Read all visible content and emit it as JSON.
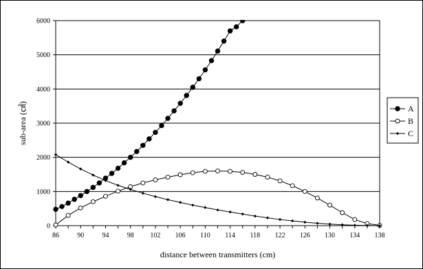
{
  "chart_data": {
    "type": "line",
    "title": "",
    "xlabel": "distance between transmitters (cm)",
    "ylabel": "sub-area (㎠)",
    "xlim": [
      86,
      138
    ],
    "ylim": [
      0,
      6000
    ],
    "x_ticks": [
      86,
      90,
      94,
      98,
      102,
      106,
      110,
      114,
      118,
      122,
      126,
      130,
      134,
      138
    ],
    "y_ticks": [
      0,
      1000,
      2000,
      3000,
      4000,
      5000,
      6000
    ],
    "grid": "horizontal",
    "legend_position": "right",
    "x": [
      86,
      88,
      90,
      92,
      94,
      96,
      98,
      100,
      102,
      104,
      106,
      108,
      110,
      112,
      114,
      116,
      118,
      120,
      122,
      124,
      126,
      128,
      130,
      132,
      134,
      136,
      138
    ],
    "series": [
      {
        "name": "A",
        "marker": "filled-circle",
        "x": [
          86,
          87,
          88,
          89,
          90,
          91,
          92,
          93,
          94,
          95,
          96,
          97,
          98,
          99,
          100,
          101,
          102,
          103,
          104,
          105,
          106,
          107,
          108,
          109,
          110,
          111,
          112,
          113,
          114,
          115,
          116
        ],
        "values": [
          480,
          560,
          660,
          770,
          880,
          1000,
          1120,
          1250,
          1390,
          1530,
          1680,
          1840,
          2000,
          2170,
          2350,
          2540,
          2730,
          2930,
          3140,
          3360,
          3580,
          3810,
          4050,
          4300,
          4560,
          4830,
          5110,
          5400,
          5700,
          5820,
          6000
        ]
      },
      {
        "name": "B",
        "marker": "open-circle",
        "values": [
          20,
          300,
          520,
          700,
          860,
          1010,
          1140,
          1250,
          1340,
          1420,
          1490,
          1550,
          1590,
          1600,
          1590,
          1560,
          1500,
          1420,
          1310,
          1170,
          1000,
          810,
          600,
          380,
          180,
          60,
          10
        ]
      },
      {
        "name": "C",
        "marker": "small-diamond",
        "values": [
          2080,
          1860,
          1660,
          1480,
          1320,
          1180,
          1060,
          950,
          850,
          760,
          680,
          600,
          530,
          460,
          400,
          340,
          280,
          230,
          180,
          140,
          100,
          70,
          45,
          25,
          12,
          5,
          0
        ]
      }
    ]
  }
}
